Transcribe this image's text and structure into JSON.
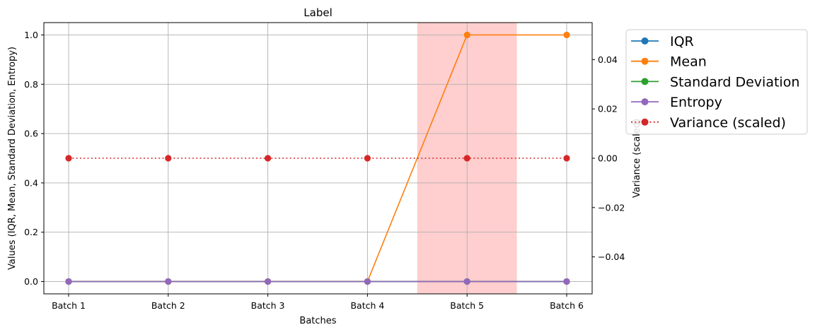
{
  "chart_data": {
    "type": "line",
    "title": "Label",
    "xlabel": "Batches",
    "ylabel": "Values (IQR, Mean, Standard Deviation, Entropy)",
    "y2label": "Variance (scaled)",
    "categories": [
      "Batch 1",
      "Batch 2",
      "Batch 3",
      "Batch 4",
      "Batch 5",
      "Batch 6"
    ],
    "ylim": [
      -0.05,
      1.05
    ],
    "yticks": [
      "0.0",
      "0.2",
      "0.4",
      "0.6",
      "0.8",
      "1.0"
    ],
    "y2lim": [
      -0.055,
      0.055
    ],
    "y2ticks": [
      "−0.04",
      "−0.02",
      "0.00",
      "0.02",
      "0.04"
    ],
    "grid": true,
    "legend_position": "upper-right-outside",
    "highlight": {
      "category": "Batch 5",
      "color": "#ff9999"
    },
    "series": [
      {
        "name": "IQR",
        "values": [
          0,
          0,
          0,
          0,
          0,
          0
        ],
        "color": "#1f77b4",
        "style": "solid",
        "axis": "left"
      },
      {
        "name": "Mean",
        "values": [
          0,
          0,
          0,
          0,
          1,
          1
        ],
        "color": "#ff7f0e",
        "style": "solid",
        "axis": "left"
      },
      {
        "name": "Standard Deviation",
        "values": [
          0,
          0,
          0,
          0,
          0,
          0
        ],
        "color": "#2ca02c",
        "style": "solid",
        "axis": "left"
      },
      {
        "name": "Entropy",
        "values": [
          0,
          0,
          0,
          0,
          0,
          0
        ],
        "color": "#9467bd",
        "style": "solid",
        "axis": "left"
      },
      {
        "name": "Variance (scaled)",
        "values": [
          0,
          0,
          0,
          0,
          0,
          0
        ],
        "color": "#d62728",
        "style": "dotted",
        "axis": "right"
      }
    ]
  }
}
